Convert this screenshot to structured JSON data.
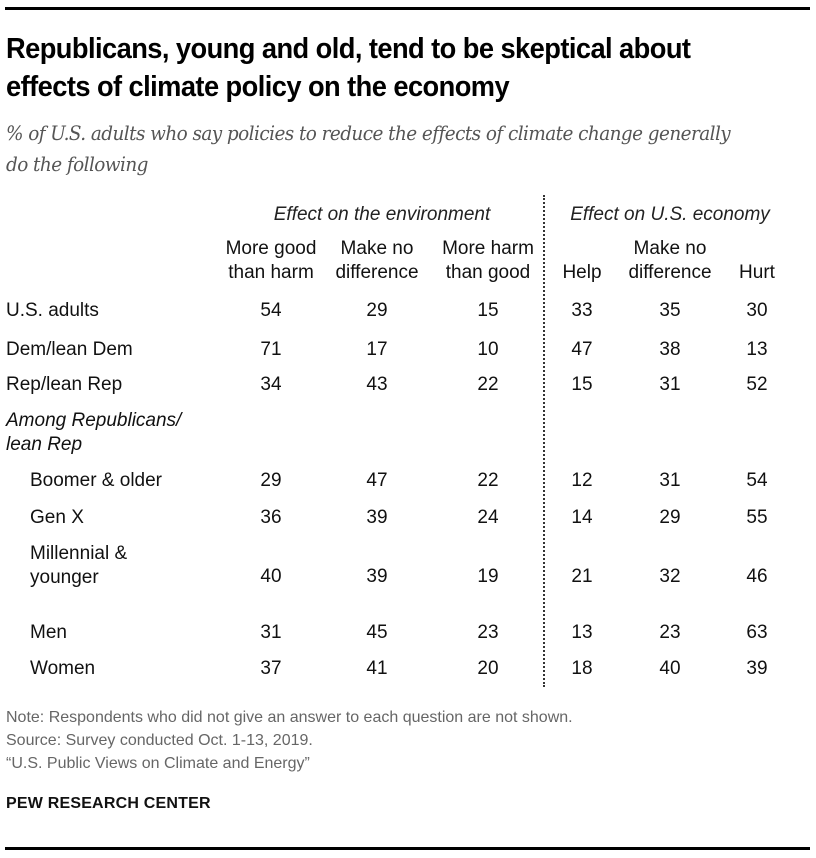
{
  "chart_data": {
    "type": "table",
    "title": "Republicans, young and old, tend to be skeptical about effects of climate policy on the economy",
    "subtitle": "% of U.S. adults who say policies to reduce the effects of climate change generally do the following",
    "column_groups": [
      {
        "label": "Effect on the environment",
        "columns": [
          "More good\nthan harm",
          "Make no\ndifference",
          "More harm\nthan good"
        ]
      },
      {
        "label": "Effect on U.S. economy",
        "columns": [
          "Help",
          "Make no\ndifference",
          "Hurt"
        ]
      }
    ],
    "rows": [
      {
        "label": "U.S. adults",
        "values": [
          54,
          29,
          15,
          33,
          35,
          30
        ],
        "indent": false
      },
      {
        "label": "Dem/lean Dem",
        "values": [
          71,
          17,
          10,
          47,
          38,
          13
        ],
        "indent": false
      },
      {
        "label": "Rep/lean Rep",
        "values": [
          34,
          43,
          22,
          15,
          31,
          52
        ],
        "indent": false
      },
      {
        "label": "Among Republicans/\nlean Rep",
        "values": null,
        "section_header": true
      },
      {
        "label": "Boomer & older",
        "values": [
          29,
          47,
          22,
          12,
          31,
          54
        ],
        "indent": true
      },
      {
        "label": "Gen X",
        "values": [
          36,
          39,
          24,
          14,
          29,
          55
        ],
        "indent": true
      },
      {
        "label": "Millennial &\nyounger",
        "values": [
          40,
          39,
          19,
          21,
          32,
          46
        ],
        "indent": true
      },
      {
        "label": "Men",
        "values": [
          31,
          45,
          23,
          13,
          23,
          63
        ],
        "indent": true
      },
      {
        "label": "Women",
        "values": [
          37,
          41,
          20,
          18,
          40,
          39
        ],
        "indent": true
      }
    ]
  },
  "notes": {
    "note": "Note: Respondents who did not give an answer to each question are not shown.",
    "source": "Source: Survey conducted Oct. 1-13, 2019.",
    "report": "“U.S. Public Views on Climate and Energy”"
  },
  "brand": "PEW RESEARCH CENTER"
}
